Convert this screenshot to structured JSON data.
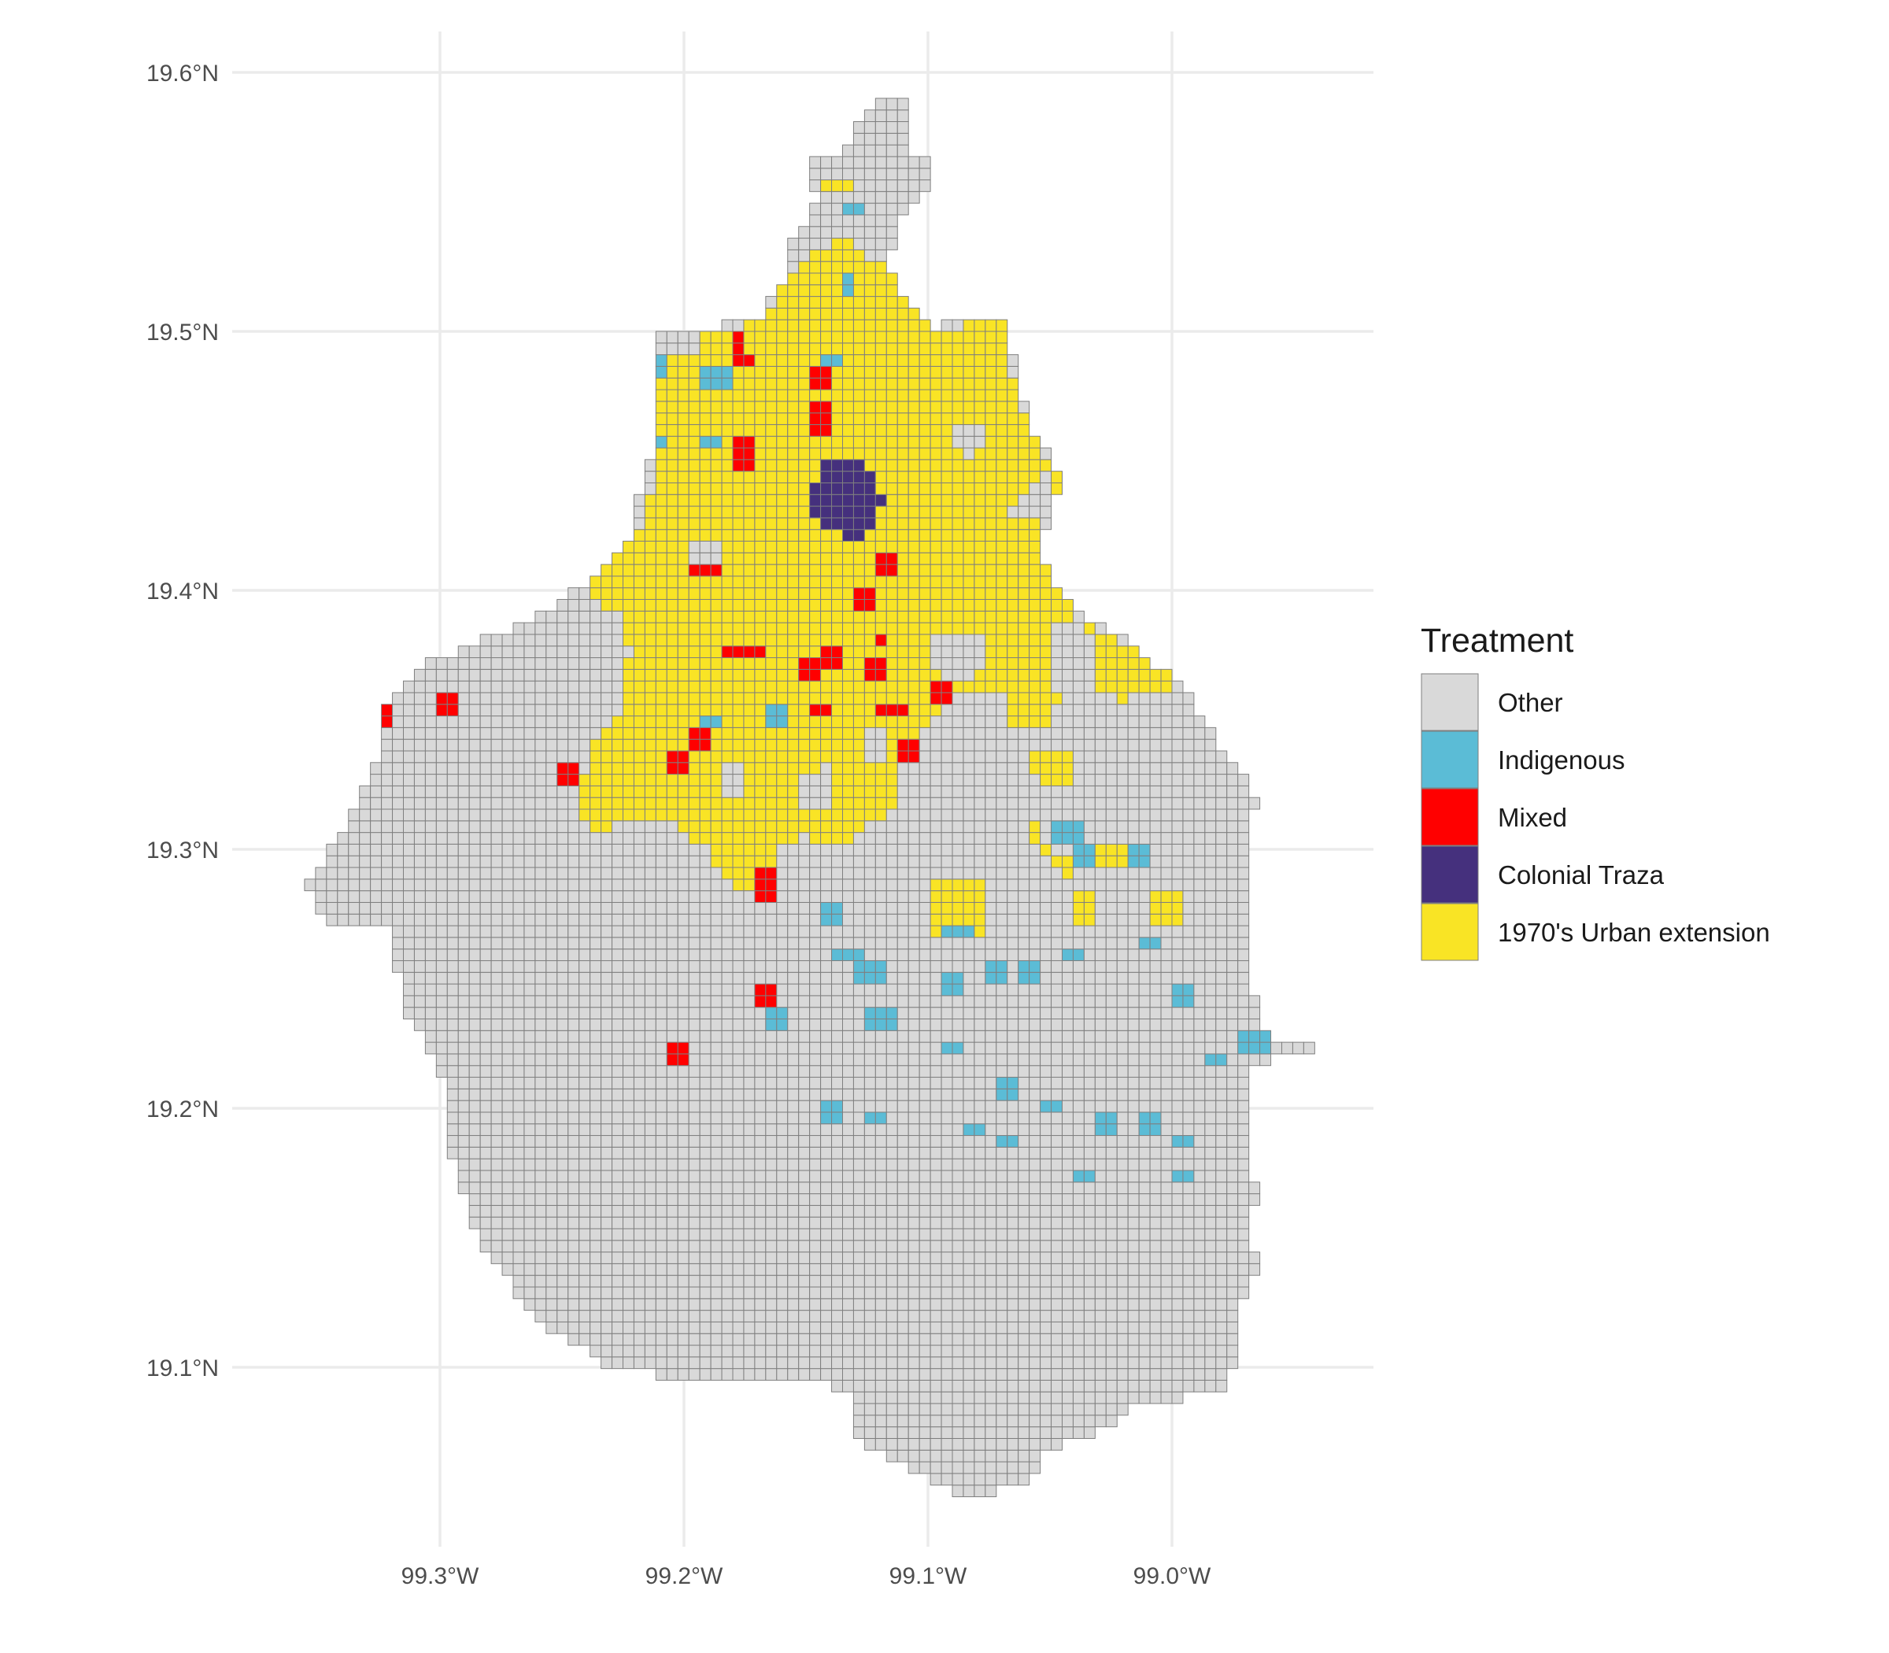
{
  "chart_data": {
    "type": "map",
    "subtype": "choropleth-grid",
    "legend": {
      "title": "Treatment",
      "placement": "right",
      "entries": [
        {
          "key": "other",
          "label": "Other",
          "color": "#d9d9d9"
        },
        {
          "key": "indigenous",
          "label": "Indigenous",
          "color": "#5bbcd6"
        },
        {
          "key": "mixed",
          "label": "Mixed",
          "color": "#ff0000"
        },
        {
          "key": "colonial",
          "label": "Colonial Traza",
          "color": "#45307d"
        },
        {
          "key": "urban1970",
          "label": "1970's Urban extension",
          "color": "#f9e425"
        }
      ]
    },
    "x_axis": {
      "ticks": [
        {
          "value": -99.3,
          "label": "99.3°W"
        },
        {
          "value": -99.2,
          "label": "99.2°W"
        },
        {
          "value": -99.1,
          "label": "99.1°W"
        },
        {
          "value": -99.0,
          "label": "99.0°W"
        }
      ],
      "range": [
        -99.36,
        -98.94
      ]
    },
    "y_axis": {
      "ticks": [
        {
          "value": 19.1,
          "label": "19.1°N"
        },
        {
          "value": 19.2,
          "label": "19.2°N"
        },
        {
          "value": 19.3,
          "label": "19.3°N"
        },
        {
          "value": 19.4,
          "label": "19.4°N"
        },
        {
          "value": 19.5,
          "label": "19.5°N"
        },
        {
          "value": 19.6,
          "label": "19.6°N"
        }
      ],
      "range": [
        19.04,
        19.61
      ]
    },
    "grid": true,
    "cell_size_degrees": 0.0045,
    "cell_border_color": "#7f7f7f",
    "grid_color": "#ebebeb"
  }
}
